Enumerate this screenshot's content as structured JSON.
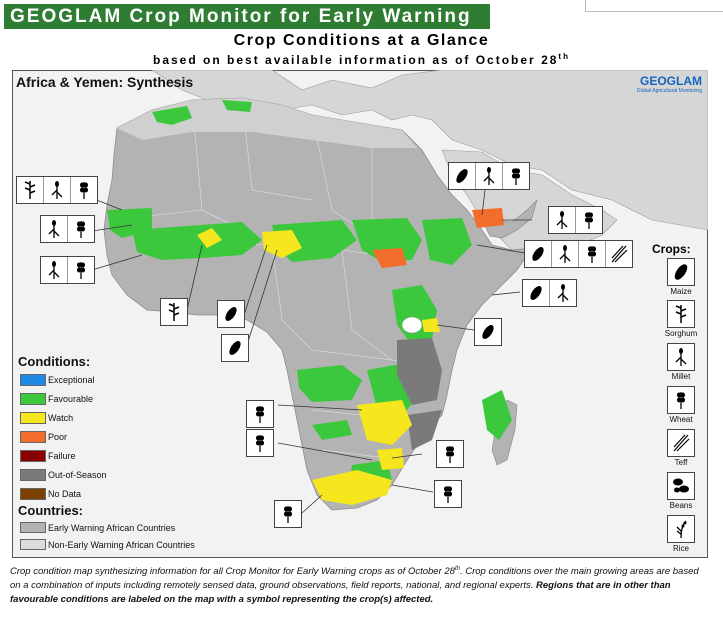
{
  "header": {
    "banner": "GEOGLAM Crop Monitor for Early Warning",
    "title": "Crop Conditions at a Glance",
    "subtitle_main": "based on best available information as of October 28",
    "subtitle_sup": "th"
  },
  "map": {
    "title": "Africa & Yemen: Synthesis",
    "logo_name": "GEOGLAM",
    "logo_tagline": "Global Agricultural Monitoring"
  },
  "conditions": {
    "heading": "Conditions:",
    "items": [
      {
        "label": "Exceptional",
        "color": "#1e88e5"
      },
      {
        "label": "Favourable",
        "color": "#3cc83c"
      },
      {
        "label": "Watch",
        "color": "#f5e61e"
      },
      {
        "label": "Poor",
        "color": "#f26c2c"
      },
      {
        "label": "Failure",
        "color": "#8b0000"
      },
      {
        "label": "Out-of-Season",
        "color": "#7a7a7a"
      },
      {
        "label": "No Data",
        "color": "#7b3f00"
      }
    ]
  },
  "countries": {
    "heading": "Countries:",
    "items": [
      {
        "label": "Early Warning African Countries",
        "color": "#b3b3b3"
      },
      {
        "label": "Non-Early Warning African Countries",
        "color": "#dcdcdc"
      }
    ]
  },
  "crops": {
    "heading": "Crops:",
    "items": [
      {
        "label": "Maize",
        "icon": "maize-icon"
      },
      {
        "label": "Sorghum",
        "icon": "sorghum-icon"
      },
      {
        "label": "Millet",
        "icon": "millet-icon"
      },
      {
        "label": "Wheat",
        "icon": "wheat-icon"
      },
      {
        "label": "Teff",
        "icon": "teff-icon"
      },
      {
        "label": "Beans",
        "icon": "beans-icon"
      },
      {
        "label": "Rice",
        "icon": "rice-icon"
      }
    ]
  },
  "caption": {
    "part1": "Crop condition map synthesizing information for all Crop Monitor for Early Warning crops as of October 28",
    "sup": "th",
    "part2": ". Crop conditions over the main growing areas are based on a combination of inputs including remotely sensed data, ground observations, field reports, national, and regional experts. ",
    "bold": "Regions that are in other than favourable conditions are labeled on the map with a symbol representing the crop(s) affected."
  }
}
